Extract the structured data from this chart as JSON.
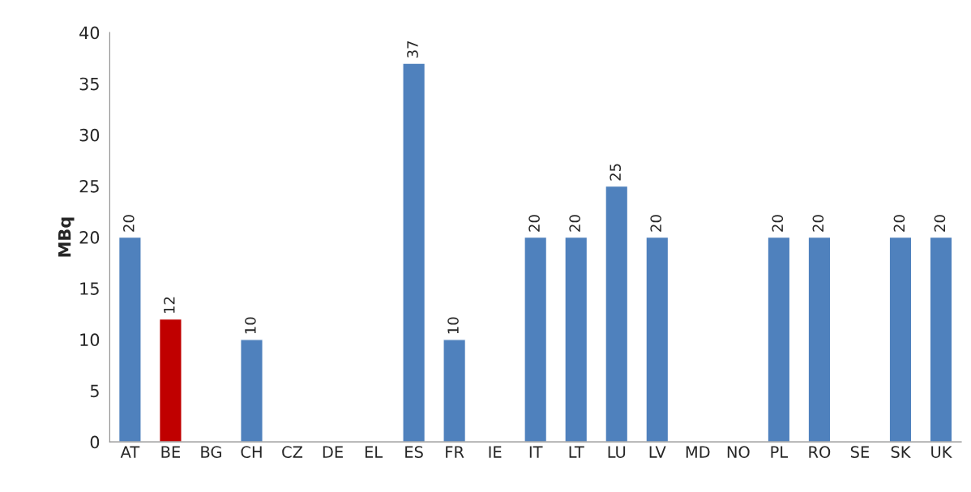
{
  "chart_data": {
    "type": "bar",
    "ylabel": "MBq",
    "categories": [
      "AT",
      "BE",
      "BG",
      "CH",
      "CZ",
      "DE",
      "EL",
      "ES",
      "FR",
      "IE",
      "IT",
      "LT",
      "LU",
      "LV",
      "MD",
      "NO",
      "PL",
      "RO",
      "SE",
      "SK",
      "UK"
    ],
    "values": [
      20,
      12,
      null,
      10,
      null,
      null,
      null,
      37,
      10,
      null,
      20,
      20,
      25,
      20,
      null,
      null,
      20,
      20,
      null,
      20,
      20
    ],
    "colors": [
      "#4f81bd",
      "#c00000",
      "#4f81bd",
      "#4f81bd",
      "#4f81bd",
      "#4f81bd",
      "#4f81bd",
      "#4f81bd",
      "#4f81bd",
      "#4f81bd",
      "#4f81bd",
      "#4f81bd",
      "#4f81bd",
      "#4f81bd",
      "#4f81bd",
      "#4f81bd",
      "#4f81bd",
      "#4f81bd",
      "#4f81bd",
      "#4f81bd",
      "#4f81bd"
    ],
    "ylim": [
      0,
      40
    ],
    "yticks": [
      0,
      5,
      10,
      15,
      20,
      25,
      30,
      35,
      40
    ],
    "data_labels": true,
    "grid": false,
    "legend": false
  }
}
